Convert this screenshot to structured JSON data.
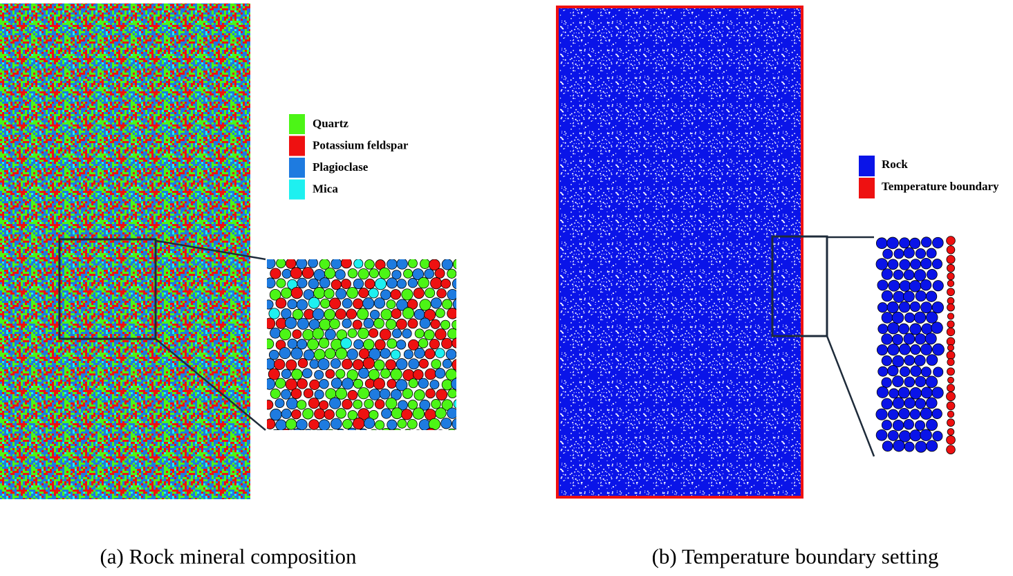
{
  "panels": [
    {
      "legend": [
        {
          "label": "Quartz",
          "color": "#4cf516"
        },
        {
          "label": "Potassium feldspar",
          "color": "#ee1111"
        },
        {
          "label": "Plagioclase",
          "color": "#1e7be0"
        },
        {
          "label": "Mica",
          "color": "#1ef0f0"
        }
      ],
      "caption": "(a) Rock mineral composition"
    },
    {
      "legend": [
        {
          "label": "Rock",
          "color": "#0a14e8"
        },
        {
          "label": "Temperature boundary",
          "color": "#ee1111"
        }
      ],
      "caption": "(b) Temperature boundary setting"
    }
  ]
}
